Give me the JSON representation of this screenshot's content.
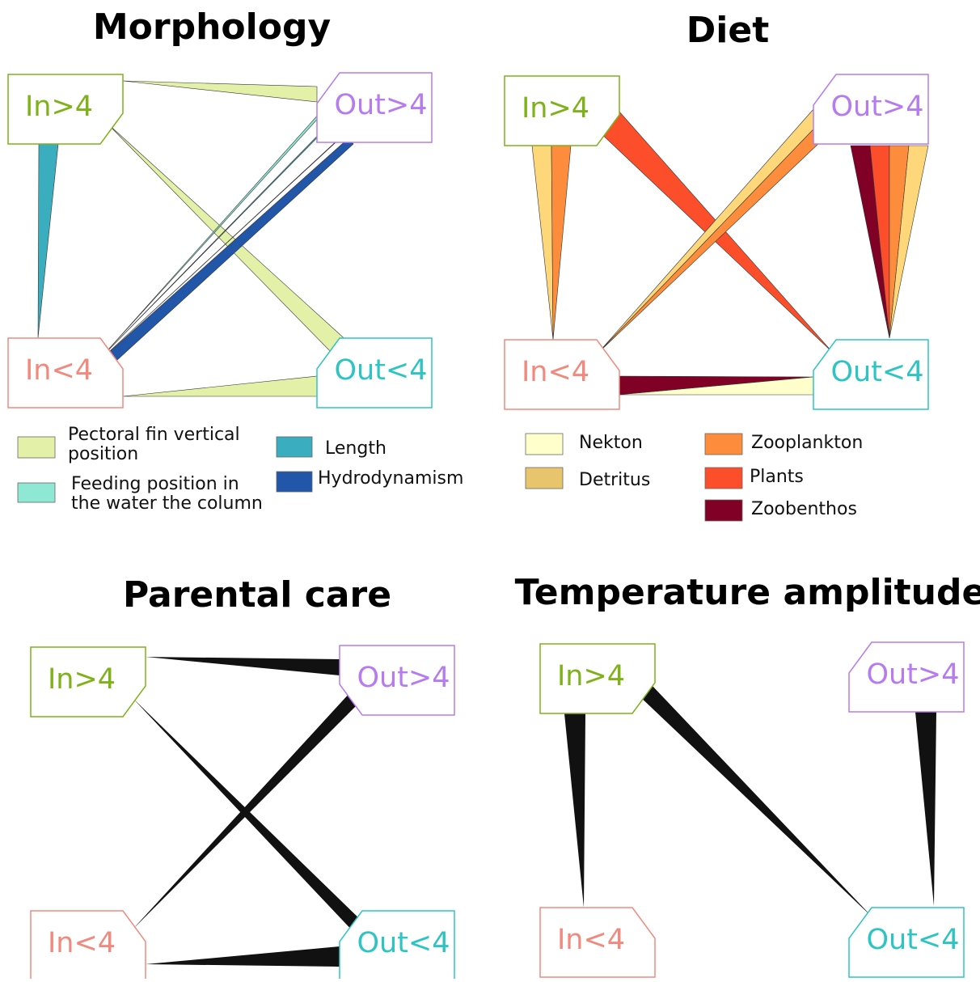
{
  "panels": [
    {
      "title": "Morphology",
      "nodes": [
        "In>4",
        "Out>4",
        "In<4",
        "Out<4"
      ],
      "legend": [
        {
          "lines": [
            "Pectoral fin vertical",
            "position"
          ],
          "color": "#e3f0a8"
        },
        {
          "lines": [
            "Feeding position in",
            "the water the column"
          ],
          "color": "#8ee8d4"
        },
        {
          "lines": [
            "Length"
          ],
          "color": "#3aaebf"
        },
        {
          "lines": [
            "Hydrodynamism"
          ],
          "color": "#2156a8"
        }
      ]
    },
    {
      "title": "Diet",
      "nodes": [
        "In>4",
        "Out>4",
        "In<4",
        "Out<4"
      ],
      "legend": [
        {
          "lines": [
            "Nekton"
          ],
          "color": "#ffffcc"
        },
        {
          "lines": [
            "Detritus"
          ],
          "color": "#e8c46c"
        },
        {
          "lines": [
            "Zooplankton"
          ],
          "color": "#fd8d3c"
        },
        {
          "lines": [
            "Plants"
          ],
          "color": "#fc4e2a"
        },
        {
          "lines": [
            "Zoobenthos"
          ],
          "color": "#800026"
        }
      ]
    },
    {
      "title": "Parental care",
      "nodes": [
        "In>4",
        "Out>4",
        "In<4",
        "Out<4"
      ],
      "legend": []
    },
    {
      "title": "Temperature amplitude",
      "nodes": [
        "In>4",
        "Out>4",
        "In<4",
        "Out<4"
      ],
      "legend": []
    }
  ]
}
